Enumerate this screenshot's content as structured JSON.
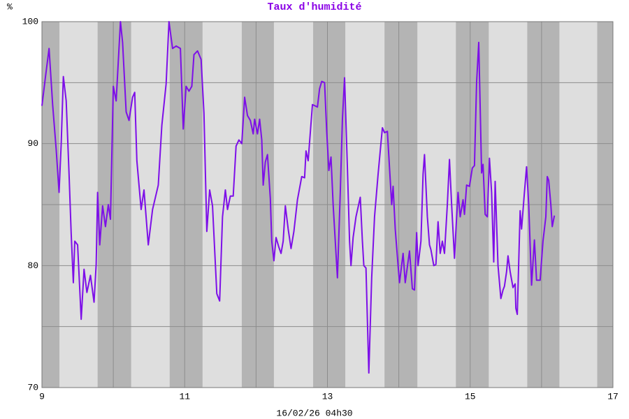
{
  "chart_data": {
    "type": "line",
    "title": "Taux d'humidité",
    "y_label": "%",
    "x_label": "16/02/26 04h30",
    "xlim": [
      9,
      17
    ],
    "xticks": [
      9,
      11,
      13,
      15,
      17
    ],
    "xgrid_minor": [
      10,
      12,
      14,
      16
    ],
    "ylim": [
      70,
      100
    ],
    "yticks": [
      70,
      80,
      90,
      100
    ],
    "ygrid_minor": [
      75,
      85,
      95
    ],
    "grid": true,
    "night_bands": [
      [
        9,
        9.245
      ],
      [
        9.78,
        10.25
      ],
      [
        10.79,
        11.25
      ],
      [
        11.8,
        12.25
      ],
      [
        12.8,
        13.25
      ],
      [
        13.8,
        14.26
      ],
      [
        14.8,
        15.26
      ],
      [
        15.8,
        16.25
      ],
      [
        16.78,
        17
      ]
    ],
    "day_color": "#dedede",
    "night_color": "#b4b4b4",
    "series": [
      {
        "color": "#7d0fe8",
        "x": [
          9.0,
          9.05,
          9.1,
          9.15,
          9.2,
          9.24,
          9.27,
          9.3,
          9.34,
          9.38,
          9.41,
          9.44,
          9.46,
          9.5,
          9.55,
          9.59,
          9.63,
          9.68,
          9.73,
          9.76,
          9.78,
          9.81,
          9.85,
          9.89,
          9.93,
          9.96,
          10.0,
          10.04,
          10.1,
          10.13,
          10.18,
          10.22,
          10.27,
          10.3,
          10.33,
          10.39,
          10.43,
          10.49,
          10.55,
          10.63,
          10.68,
          10.74,
          10.78,
          10.83,
          10.88,
          10.94,
          10.98,
          11.02,
          11.06,
          11.1,
          11.13,
          11.18,
          11.23,
          11.27,
          11.31,
          11.35,
          11.39,
          11.45,
          11.49,
          11.53,
          11.57,
          11.6,
          11.64,
          11.68,
          11.72,
          11.76,
          11.8,
          11.84,
          11.88,
          11.92,
          11.96,
          11.98,
          12.02,
          12.05,
          12.08,
          12.1,
          12.13,
          12.16,
          12.2,
          12.22,
          12.25,
          12.28,
          12.32,
          12.35,
          12.38,
          12.41,
          12.45,
          12.49,
          12.53,
          12.58,
          12.64,
          12.68,
          12.7,
          12.73,
          12.79,
          12.86,
          12.89,
          12.92,
          12.96,
          12.99,
          13.02,
          13.05,
          13.08,
          13.11,
          13.14,
          13.18,
          13.21,
          13.24,
          13.28,
          13.31,
          13.33,
          13.36,
          13.4,
          13.46,
          13.49,
          13.51,
          13.54,
          13.58,
          13.62,
          13.66,
          13.71,
          13.77,
          13.8,
          13.84,
          13.87,
          13.9,
          13.92,
          13.95,
          13.99,
          14.01,
          14.06,
          14.09,
          14.15,
          14.19,
          14.22,
          14.25,
          14.27,
          14.31,
          14.34,
          14.36,
          14.4,
          14.43,
          14.45,
          14.49,
          14.52,
          14.55,
          14.58,
          14.61,
          14.64,
          14.68,
          14.71,
          14.74,
          14.78,
          14.81,
          14.83,
          14.86,
          14.9,
          14.92,
          14.95,
          14.99,
          15.03,
          15.06,
          15.09,
          15.12,
          15.14,
          15.16,
          15.18,
          15.21,
          15.24,
          15.27,
          15.3,
          15.33,
          15.35,
          15.39,
          15.43,
          15.46,
          15.48,
          15.51,
          15.53,
          15.56,
          15.6,
          15.63,
          15.64,
          15.66,
          15.7,
          15.72,
          15.76,
          15.79,
          15.82,
          15.86,
          15.9,
          15.93,
          15.98,
          16.02,
          16.06,
          16.08,
          16.1,
          16.13,
          16.15,
          16.18
        ],
        "values": [
          93.1,
          95.5,
          97.8,
          93.2,
          89.5,
          86.0,
          90,
          95.5,
          93.5,
          87.5,
          82.6,
          78.6,
          82,
          81.7,
          75.6,
          79.7,
          77.8,
          79.2,
          77.0,
          80.1,
          86,
          81.7,
          84.9,
          83.2,
          85,
          83.8,
          94.7,
          93.5,
          100,
          98.3,
          92.6,
          91.9,
          93.8,
          94.2,
          88.6,
          84.6,
          86.2,
          81.7,
          84.6,
          86.6,
          91.5,
          94.9,
          100,
          97.8,
          98,
          97.8,
          91.2,
          94.7,
          94.3,
          94.7,
          97.3,
          97.6,
          96.9,
          92.5,
          82.8,
          86.2,
          84.9,
          77.7,
          77.1,
          84,
          86.2,
          84.6,
          85.7,
          85.7,
          89.8,
          90.3,
          90,
          93.8,
          92.3,
          91.9,
          90.8,
          92,
          90.8,
          92,
          90.3,
          86.6,
          88.5,
          89.1,
          85.5,
          82,
          80.4,
          82.3,
          81.5,
          81,
          82,
          84.9,
          83,
          81.4,
          82.8,
          85.4,
          87.3,
          87.2,
          89.4,
          88.6,
          93.2,
          93,
          94.5,
          95.1,
          95,
          91,
          87.8,
          88.9,
          85,
          82,
          79,
          86,
          92,
          95.4,
          88,
          82,
          80,
          82.3,
          84,
          85.6,
          82,
          80,
          79.8,
          71.2,
          79,
          84,
          87.5,
          91.3,
          90.9,
          91,
          88,
          85,
          86.5,
          83,
          80,
          78.6,
          81,
          78.6,
          81.2,
          78.1,
          78,
          82.7,
          80,
          82,
          87.5,
          89.1,
          84,
          81.7,
          81.3,
          80,
          80.1,
          83.6,
          81,
          82,
          81,
          85,
          88.7,
          85,
          80.6,
          84,
          86,
          84,
          85.4,
          84.2,
          86.6,
          86.5,
          88,
          88.2,
          95,
          98.3,
          93,
          87.6,
          88.3,
          84.2,
          84,
          88.8,
          86,
          80.3,
          86.9,
          80,
          77.3,
          78,
          78.3,
          79.5,
          80.8,
          79.5,
          78.2,
          78.5,
          76.5,
          76,
          84.5,
          83,
          86,
          88.1,
          85,
          78.4,
          82.1,
          78.8,
          78.8,
          82,
          84,
          87.3,
          87,
          85,
          83.2,
          84.1
        ]
      }
    ]
  }
}
